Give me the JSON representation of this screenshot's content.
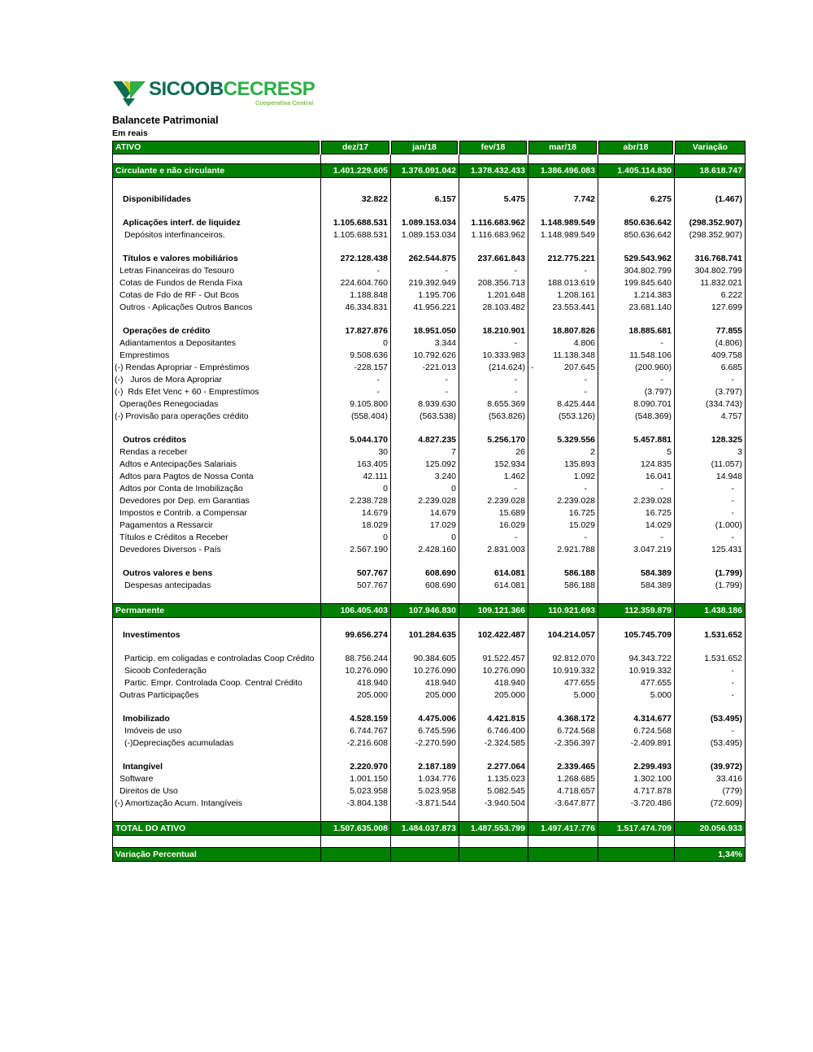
{
  "logo": {
    "brand": "SICOOB",
    "suffix": "CECRESP",
    "tagline": "Cooperativa Central"
  },
  "title": "Balancete Patrimonial",
  "subtitle": "Em reais",
  "colors": {
    "band_green": "#008000",
    "logo_dark": "#0F6B52",
    "logo_mid": "#2FAE49",
    "logo_light": "#7CC142",
    "logo_yellow": "#C3D021"
  },
  "columns": [
    "ATIVO",
    "dez/17",
    "jan/18",
    "fev/18",
    "mar/18",
    "abr/18",
    "Variação"
  ],
  "rows": [
    {
      "t": "spacer_sm"
    },
    {
      "t": "band",
      "l": "Circulante e não circulante",
      "v": [
        "1.401.229.605",
        "1.376.091.042",
        "1.378.432.433",
        "1.386.496.083",
        "1.405.114.830",
        "18.618.747"
      ]
    },
    {
      "t": "spacer_tall"
    },
    {
      "t": "section",
      "l": "Disponibilidades",
      "v": [
        "32.822",
        "6.157",
        "5.475",
        "7.742",
        "6.275",
        "(1.467)"
      ]
    },
    {
      "t": "spacer"
    },
    {
      "t": "section",
      "l": "Aplicações interf. de liquidez",
      "v": [
        "1.105.688.531",
        "1.089.153.034",
        "1.116.683.962",
        "1.148.989.549",
        "850.636.642",
        "(298.352.907)"
      ]
    },
    {
      "t": "item",
      "ind": 2,
      "l": "Depósitos interfinanceiros.",
      "v": [
        "1.105.688.531",
        "1.089.153.034",
        "1.116.683.962",
        "1.148.989.549",
        "850.636.642",
        "(298.352.907)"
      ]
    },
    {
      "t": "spacer"
    },
    {
      "t": "section",
      "l": "Títulos e valores mobiliários",
      "v": [
        "272.128.438",
        "262.544.875",
        "237.661.843",
        "212.775.221",
        "529.543.962",
        "316.768.741"
      ]
    },
    {
      "t": "item",
      "l": "Letras Financeiras do Tesouro",
      "v": [
        "-",
        "-",
        "-",
        "-",
        "304.802.799",
        "304.802.799"
      ]
    },
    {
      "t": "item",
      "l": "Cotas de Fundos de Renda Fixa",
      "v": [
        "224.604.760",
        "219.392.949",
        "208.356.713",
        "188.013.619",
        "199.845.640",
        "11.832.021"
      ]
    },
    {
      "t": "item",
      "l": "Cotas de Fdo de RF - Out Bcos",
      "v": [
        "1.188.848",
        "1.195.706",
        "1.201.648",
        "1.208.161",
        "1.214.383",
        "6.222"
      ]
    },
    {
      "t": "item",
      "l": "Outros - Aplicações Outros Bancos",
      "v": [
        "46.334.831",
        "41.956.221",
        "28.103.482",
        "23.553.441",
        "23.681.140",
        "127.699"
      ]
    },
    {
      "t": "spacer"
    },
    {
      "t": "section",
      "l": "Operações de crédito",
      "v": [
        "17.827.876",
        "18.951.050",
        "18.210.901",
        "18.807.826",
        "18.885.681",
        "77.855"
      ]
    },
    {
      "t": "item",
      "l": "Adiantamentos a Depositantes",
      "v": [
        "0",
        "3.344",
        "-",
        "4.806",
        "-",
        "(4.806)"
      ]
    },
    {
      "t": "item",
      "l": "Emprestimos",
      "v": [
        "9.508.636",
        "10.792.626",
        "10.333.983",
        "11.138.348",
        "11.548.106",
        "409.758"
      ]
    },
    {
      "t": "item",
      "neg": true,
      "l": "(-) Rendas Apropriar - Empréstimos",
      "v": [
        "-228.157",
        "-221.013",
        "(214.624)",
        "-\t207.645",
        "(200.960)",
        "6.685"
      ]
    },
    {
      "t": "item",
      "neg": true,
      "l": "(-)   Juros de Mora Apropriar",
      "v": [
        "-",
        "-",
        "-",
        "-",
        "-",
        "-"
      ]
    },
    {
      "t": "item",
      "neg": true,
      "l": "(-)  Rds Efet Venc + 60 - Emprestímos",
      "v": [
        "-",
        "-",
        "-",
        "-",
        "(3.797)",
        "(3.797)"
      ]
    },
    {
      "t": "item",
      "l": "Operações Renegociadas",
      "v": [
        "9.105.800",
        "8.939.630",
        "8.655.369",
        "8.425.444",
        "8.090.701",
        "(334.743)"
      ]
    },
    {
      "t": "item",
      "neg": true,
      "l": "(-) Provisão para operações crédito",
      "v": [
        "(558.404)",
        "(563.538)",
        "(563.826)",
        "(553.126)",
        "(548.369)",
        "4.757"
      ]
    },
    {
      "t": "spacer"
    },
    {
      "t": "section",
      "l": "Outros créditos",
      "v": [
        "5.044.170",
        "4.827.235",
        "5.256.170",
        "5.329.556",
        "5.457.881",
        "128.325"
      ]
    },
    {
      "t": "item",
      "l": "Rendas a receber",
      "v": [
        "30",
        "7",
        "26",
        "2",
        "5",
        "3"
      ]
    },
    {
      "t": "item",
      "l": "Adtos e Antecipações Salariais",
      "v": [
        "163.405",
        "125.092",
        "152.934",
        "135.893",
        "124.835",
        "(11.057)"
      ]
    },
    {
      "t": "item",
      "l": "Adtos para Pagtos de Nossa Conta",
      "v": [
        "42.111",
        "3.240",
        "1.462",
        "1.092",
        "16.041",
        "14.948"
      ]
    },
    {
      "t": "item",
      "l": "Adtos por Conta de Imobilização",
      "v": [
        "0",
        "0",
        "-",
        "-",
        "-",
        "-"
      ]
    },
    {
      "t": "item",
      "l": "Devedores por Dep. em Garantias",
      "v": [
        "2.238.728",
        "2.239.028",
        "2.239.028",
        "2.239.028",
        "2.239.028",
        "-"
      ]
    },
    {
      "t": "item",
      "l": "Impostos e Contrib. a Compensar",
      "v": [
        "14.679",
        "14.679",
        "15.689",
        "16.725",
        "16.725",
        "-"
      ]
    },
    {
      "t": "item",
      "l": "Pagamentos a Ressarcir",
      "v": [
        "18.029",
        "17.029",
        "16.029",
        "15.029",
        "14.029",
        "(1.000)"
      ]
    },
    {
      "t": "item",
      "l": "Títulos e Créditos a Receber",
      "v": [
        "0",
        "0",
        "-",
        "-",
        "-",
        "-"
      ]
    },
    {
      "t": "item",
      "l": "Devedores Diversos - País",
      "v": [
        "2.567.190",
        "2.428.160",
        "2.831.003",
        "2.921.788",
        "3.047.219",
        "125.431"
      ]
    },
    {
      "t": "spacer"
    },
    {
      "t": "section",
      "l": "Outros valores e bens",
      "v": [
        "507.767",
        "608.690",
        "614.081",
        "586.188",
        "584.389",
        "(1.799)"
      ]
    },
    {
      "t": "item",
      "ind": 2,
      "l": "Despesas antecipadas",
      "v": [
        "507.767",
        "608.690",
        "614.081",
        "586.188",
        "584.389",
        "(1.799)"
      ]
    },
    {
      "t": "spacer"
    },
    {
      "t": "band",
      "l": "Permanente",
      "v": [
        "106.405.403",
        "107.946.830",
        "109.121.366",
        "110.921.693",
        "112.359.879",
        "1.438.186"
      ]
    },
    {
      "t": "spacer"
    },
    {
      "t": "section",
      "l": "Investimentos",
      "v": [
        "99.656.274",
        "101.284.635",
        "102.422.487",
        "104.214.057",
        "105.745.709",
        "1.531.652"
      ]
    },
    {
      "t": "spacer"
    },
    {
      "t": "item",
      "ind": 2,
      "l": "Particip. em coligadas e controladas Coop Crédito",
      "v": [
        "88.756.244",
        "90.384.605",
        "91.522.457",
        "92.812.070",
        "94.343.722",
        "1.531.652"
      ]
    },
    {
      "t": "item",
      "ind": 2,
      "l": "Sicoob Confederação",
      "v": [
        "10.276.090",
        "10.276.090",
        "10.276.090",
        "10.919.332",
        "10.919.332",
        "-"
      ]
    },
    {
      "t": "item",
      "ind": 2,
      "l": "Partic. Empr. Controlada Coop. Central Crédito",
      "v": [
        "418.940",
        "418.940",
        "418.940",
        "477.655",
        "477.655",
        "-"
      ]
    },
    {
      "t": "item",
      "l": "Outras Participações",
      "v": [
        "205.000",
        "205.000",
        "205.000",
        "5.000",
        "5.000",
        "-"
      ]
    },
    {
      "t": "spacer"
    },
    {
      "t": "section",
      "l": "Imobilizado",
      "v": [
        "4.528.159",
        "4.475.006",
        "4.421.815",
        "4.368.172",
        "4.314.677",
        "(53.495)"
      ]
    },
    {
      "t": "item",
      "ind": 2,
      "l": "Imóveis de uso",
      "v": [
        "6.744.767",
        "6.745.596",
        "6.746.400",
        "6.724.568",
        "6.724.568",
        "-"
      ]
    },
    {
      "t": "item",
      "ind": 2,
      "l": "(-)Depreciações acumuladas",
      "v": [
        "-2.216.608",
        "-2.270.590",
        "-2.324.585",
        "-2.356.397",
        "-2.409.891",
        "(53.495)"
      ]
    },
    {
      "t": "spacer"
    },
    {
      "t": "section",
      "l": "Intangível",
      "v": [
        "2.220.970",
        "2.187.189",
        "2.277.064",
        "2.339.465",
        "2.299.493",
        "(39.972)"
      ]
    },
    {
      "t": "item",
      "l": "Software",
      "v": [
        "1.001.150",
        "1.034.776",
        "1.135.023",
        "1.268.685",
        "1.302.100",
        "33.416"
      ]
    },
    {
      "t": "item",
      "l": "Direitos de Uso",
      "v": [
        "5.023.958",
        "5.023.958",
        "5.082.545",
        "4.718.657",
        "4.717.878",
        "(779)"
      ]
    },
    {
      "t": "item",
      "neg": true,
      "l": "(-) Amortização Acum. Intangíveis",
      "v": [
        "-3.804.138",
        "-3.871.544",
        "-3.940.504",
        "-3.647.877",
        "-3.720.486",
        "(72.609)"
      ]
    },
    {
      "t": "spacer"
    },
    {
      "t": "band",
      "l": "TOTAL DO ATIVO",
      "v": [
        "1.507.635.008",
        "1.484.037.873",
        "1.487.553.799",
        "1.497.417.776",
        "1.517.474.709",
        "20.056.933"
      ]
    },
    {
      "t": "spacer"
    },
    {
      "t": "band",
      "l": "Variação Percentual",
      "v": [
        "",
        "",
        "",
        "",
        "",
        "1,34%"
      ]
    }
  ]
}
